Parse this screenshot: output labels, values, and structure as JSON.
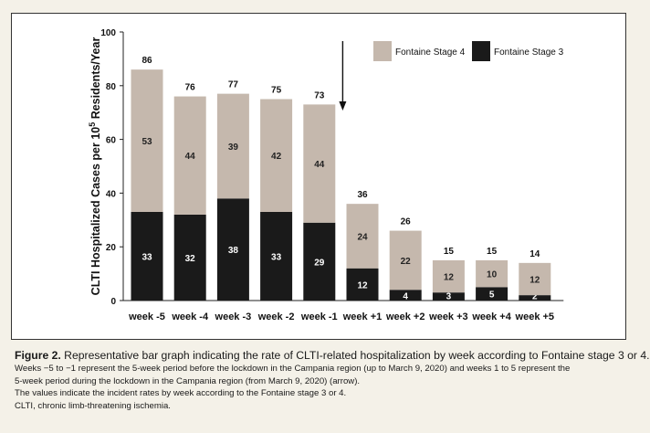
{
  "chart_data": {
    "type": "bar",
    "stacked": true,
    "ylabel_prefix": "CLTI Hospitalized Cases per 10",
    "ylabel_sup": "5",
    "ylabel_suffix": " Residents/Year",
    "ylim": [
      0,
      100
    ],
    "yticks": [
      "0",
      "20",
      "40",
      "60",
      "80",
      "100"
    ],
    "categories": [
      "week -5",
      "week -4",
      "week -3",
      "week -2",
      "week -1",
      "week +1",
      "week +2",
      "week +3",
      "week +4",
      "week +5"
    ],
    "totals": [
      86,
      76,
      77,
      75,
      73,
      36,
      26,
      15,
      15,
      14
    ],
    "series": [
      {
        "name": "Fontaine Stage 3",
        "color": "#1a1a1a",
        "label_color": "#ffffff",
        "values": [
          33,
          32,
          38,
          33,
          29,
          12,
          4,
          3,
          5,
          2
        ]
      },
      {
        "name": "Fontaine Stage 4",
        "color": "#c5b8ad",
        "label_color": "#222222",
        "values": [
          53,
          44,
          39,
          42,
          44,
          24,
          22,
          12,
          10,
          12
        ]
      }
    ],
    "legend_order": [
      1,
      0
    ],
    "legend_position": "top-right",
    "annotation": {
      "type": "arrow",
      "between": [
        "week -1",
        "week +1"
      ],
      "meaning": "lockdown"
    },
    "grid": false
  },
  "caption": {
    "figure_label": "Figure 2.",
    "title": " Representative bar graph indicating the rate of CLTI-related hospitalization by week according to Fontaine stage 3 or 4.",
    "lines": [
      "Weeks −5 to −1 represent the 5-week period before the lockdown in the Campania region (up to March 9, 2020) and weeks 1 to 5 represent the",
      "5-week period during the lockdown in the Campania region (from March 9, 2020) (arrow).",
      "The values indicate the incident rates by week according to the Fontaine stage 3 or 4.",
      "CLTI, chronic limb-threatening ischemia."
    ]
  }
}
